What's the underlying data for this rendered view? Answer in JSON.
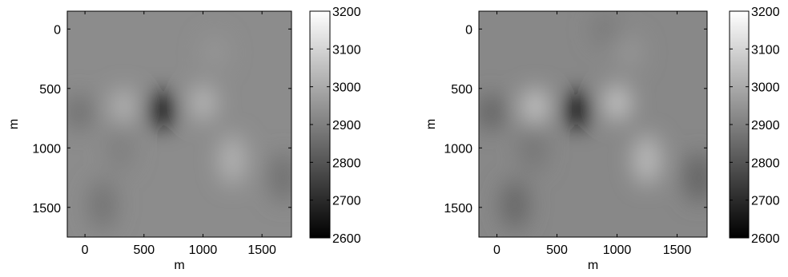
{
  "chart_data": [
    {
      "type": "heatmap",
      "xlabel": "m",
      "ylabel": "m",
      "xlim": [
        -150,
        1750
      ],
      "ylim": [
        1750,
        -150
      ],
      "xticks": [
        0,
        500,
        1000,
        1500
      ],
      "yticks": [
        0,
        500,
        1000,
        1500
      ],
      "xtick_labels": [
        "0",
        "500",
        "1000",
        "1500"
      ],
      "ytick_labels": [
        "0",
        "500",
        "1000",
        "1500"
      ],
      "colorbar": {
        "min": 2600,
        "max": 3200,
        "ticks": [
          3200,
          3100,
          3000,
          2900,
          2800,
          2700,
          2600
        ],
        "tick_labels": [
          "3200",
          "3100",
          "3000",
          "2900",
          "2800",
          "2700",
          "2600"
        ],
        "colormap": "gray"
      },
      "background_value": 2930,
      "anomalies": [
        {
          "x": 650,
          "y": 680,
          "value": 2640
        },
        {
          "x": 330,
          "y": 650,
          "value": 3020
        },
        {
          "x": 1000,
          "y": 620,
          "value": 3030
        },
        {
          "x": 1250,
          "y": 1100,
          "value": 3020
        },
        {
          "x": -50,
          "y": 700,
          "value": 2860
        },
        {
          "x": 1680,
          "y": 1250,
          "value": 2860
        },
        {
          "x": 150,
          "y": 1480,
          "value": 2870
        },
        {
          "x": 300,
          "y": 1000,
          "value": 2900
        },
        {
          "x": 1100,
          "y": 200,
          "value": 2950
        }
      ]
    },
    {
      "type": "heatmap",
      "xlabel": "m",
      "ylabel": "m",
      "xlim": [
        -150,
        1750
      ],
      "ylim": [
        1750,
        -150
      ],
      "xticks": [
        0,
        500,
        1000,
        1500
      ],
      "yticks": [
        0,
        500,
        1000,
        1500
      ],
      "xtick_labels": [
        "0",
        "500",
        "1000",
        "1500"
      ],
      "ytick_labels": [
        "0",
        "500",
        "1000",
        "1500"
      ],
      "colorbar": {
        "min": 2600,
        "max": 3200,
        "ticks": [
          3200,
          3100,
          3000,
          2900,
          2800,
          2700,
          2600
        ],
        "tick_labels": [
          "3200",
          "3100",
          "3000",
          "2900",
          "2800",
          "2700",
          "2600"
        ],
        "colormap": "gray"
      },
      "background_value": 2920,
      "anomalies": [
        {
          "x": 670,
          "y": 680,
          "value": 2620
        },
        {
          "x": 320,
          "y": 650,
          "value": 3060
        },
        {
          "x": 1000,
          "y": 620,
          "value": 3060
        },
        {
          "x": 1250,
          "y": 1100,
          "value": 3040
        },
        {
          "x": -50,
          "y": 700,
          "value": 2830
        },
        {
          "x": 1680,
          "y": 1250,
          "value": 2830
        },
        {
          "x": 150,
          "y": 1480,
          "value": 2840
        },
        {
          "x": 300,
          "y": 1000,
          "value": 2880
        },
        {
          "x": 1100,
          "y": 200,
          "value": 2950
        },
        {
          "x": 900,
          "y": 0,
          "value": 2890
        }
      ]
    }
  ]
}
